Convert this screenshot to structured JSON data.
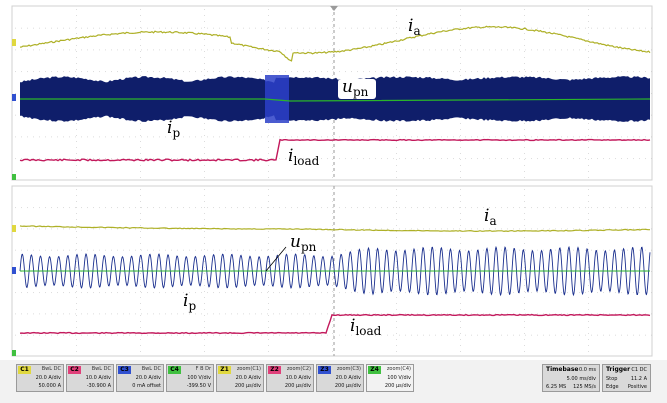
{
  "colors": {
    "yellow_trace": "#aeb027",
    "blue_trace": "#1a2f8e",
    "navy_fill": "#0f1e6a",
    "green_trace": "#2ab52a",
    "magenta_trace": "#c2185b",
    "grid": "#cfcfcf",
    "background": "#ffffff"
  },
  "top_panel": {
    "labels": {
      "ia": {
        "main": "i",
        "sub": "a"
      },
      "upn": {
        "main": "u",
        "sub": "pn"
      },
      "ip": {
        "main": "i",
        "sub": "p"
      },
      "iload": {
        "main": "i",
        "sub": "load"
      }
    }
  },
  "bottom_panel": {
    "labels": {
      "ia": {
        "main": "i",
        "sub": "a"
      },
      "upn": {
        "main": "u",
        "sub": "pn"
      },
      "ip": {
        "main": "i",
        "sub": "p"
      },
      "iload": {
        "main": "i",
        "sub": "load"
      }
    }
  },
  "channels": [
    {
      "tag": "C1",
      "color": "#e0d840",
      "header": "BwL DC",
      "line1": "20.0 A/div",
      "line2": "50.000 A"
    },
    {
      "tag": "C2",
      "color": "#e0407a",
      "header": "BwL DC",
      "line1": "10.0 A/div",
      "line2": "-30.900 A"
    },
    {
      "tag": "C3",
      "color": "#3050d0",
      "header": "BwL DC",
      "line1": "20.0 A/div",
      "line2": "0 mA offset"
    },
    {
      "tag": "C4",
      "color": "#40c040",
      "header": "F B Dr",
      "line1": "100 V/div",
      "line2": "-399.50 V"
    },
    {
      "tag": "Z1",
      "color": "#e0d840",
      "header": "zoom(C1)",
      "line1": "20.0 A/div",
      "line2": "200 µs/div"
    },
    {
      "tag": "Z2",
      "color": "#e0407a",
      "header": "zoom(C2)",
      "line1": "10.0 A/div",
      "line2": "200 µs/div"
    },
    {
      "tag": "Z3",
      "color": "#3050d0",
      "header": "zoom(C3)",
      "line1": "20.0 A/div",
      "line2": "200 µs/div"
    },
    {
      "tag": "Z4",
      "color": "#40c040",
      "header": "zoom(C4)",
      "line1": "100 V/div",
      "line2": "200 µs/div"
    }
  ],
  "timebase": {
    "title": "Timebase",
    "value": "0.0 ms",
    "row1a": "5.00 ms/div",
    "row2a": "6.25 MS",
    "row2b": "125 MS/s"
  },
  "trigger": {
    "title": "Trigger",
    "value": "C1 DC",
    "row1a": "Stop",
    "row1b": "11.2 A",
    "row2a": "Edge",
    "row2b": "Positive"
  }
}
